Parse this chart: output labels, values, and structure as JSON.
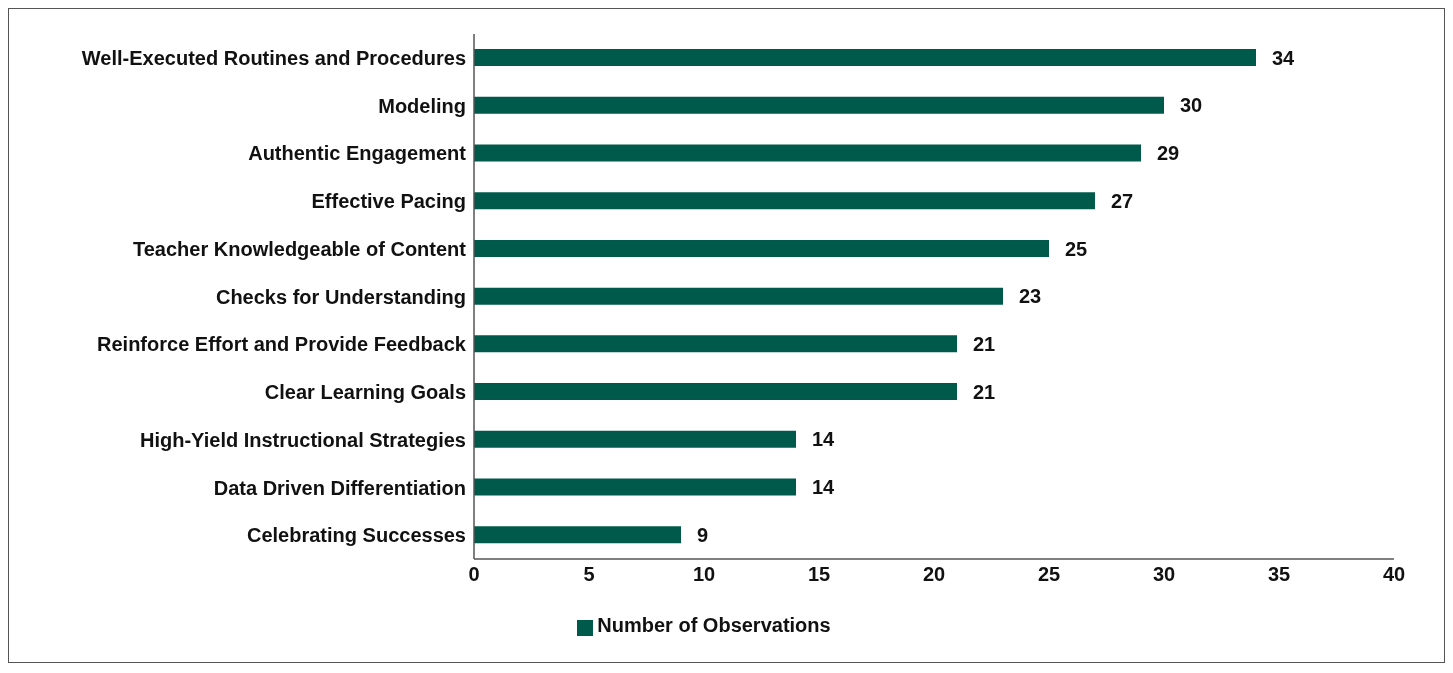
{
  "chart_data": {
    "type": "bar",
    "orientation": "horizontal",
    "categories": [
      "Well-Executed Routines and Procedures",
      "Modeling",
      "Authentic Engagement",
      "Effective Pacing",
      "Teacher Knowledgeable of Content",
      "Checks for Understanding",
      "Reinforce Effort and Provide Feedback",
      "Clear Learning Goals",
      "High-Yield Instructional Strategies",
      "Data Driven Differentiation",
      "Celebrating Successes"
    ],
    "series": [
      {
        "name": "Number of Observations",
        "color": "#005a4b",
        "values": [
          34,
          30,
          29,
          27,
          25,
          23,
          21,
          21,
          14,
          14,
          9
        ]
      }
    ],
    "xlim": [
      0,
      40
    ],
    "xticks": [
      0,
      5,
      10,
      15,
      20,
      25,
      30,
      35,
      40
    ],
    "grid": false,
    "legend": "bottom",
    "data_labels": true
  }
}
